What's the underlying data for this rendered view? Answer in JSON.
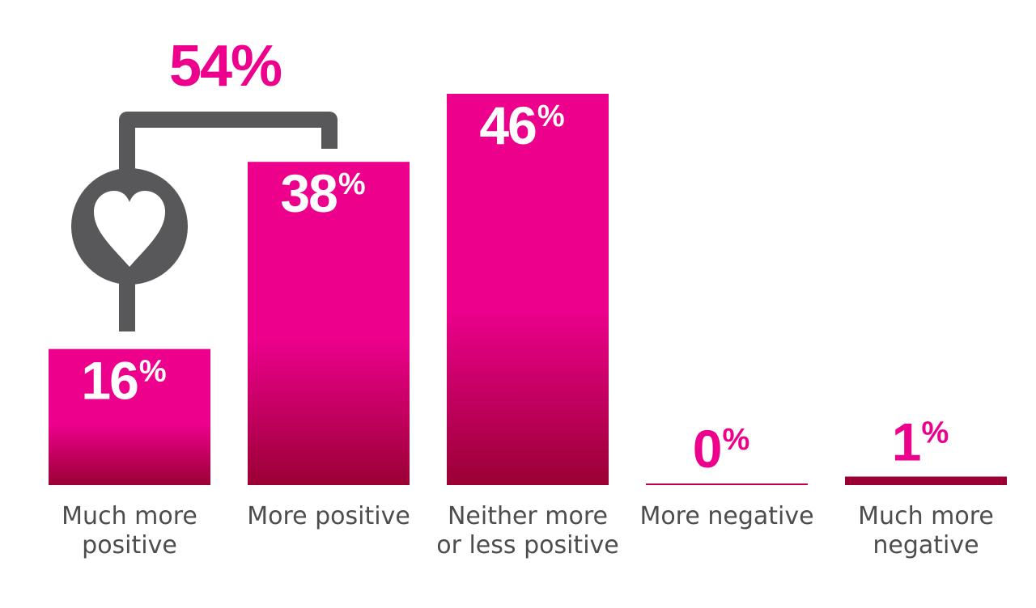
{
  "chart_data": {
    "type": "bar",
    "categories": [
      [
        "Much more",
        "positive"
      ],
      [
        "More positive"
      ],
      [
        "Neither more",
        "or less positive"
      ],
      [
        "More negative"
      ],
      [
        "Much more",
        "negative"
      ]
    ],
    "values": [
      16,
      38,
      46,
      0,
      1
    ],
    "value_labels": [
      "16%",
      "38%",
      "46%",
      "0%",
      "1%"
    ],
    "ylim": [
      0,
      46
    ],
    "grid": false,
    "annotation": {
      "label": "54%",
      "value": 54,
      "spans_categories": [
        0,
        1
      ],
      "icon": "heart-icon"
    },
    "colors": {
      "bar_top": "#ec008c",
      "bar_bottom": "#9b0035",
      "value_text_outside": "#ec008c",
      "bracket": "#58585a",
      "label_text": "#4d4d4f"
    }
  }
}
